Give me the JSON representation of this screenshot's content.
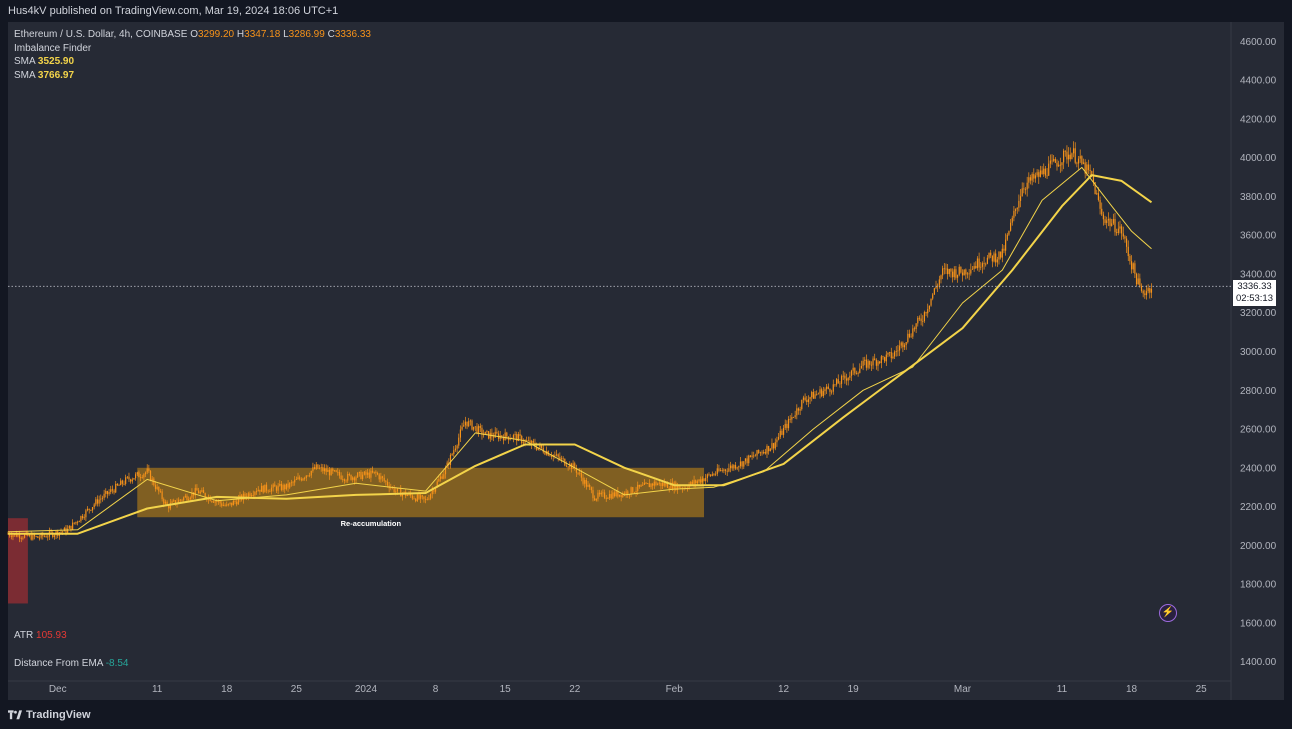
{
  "header": {
    "published_text": "Hus4kV published on TradingView.com, Mar 19, 2024 18:06 UTC+1"
  },
  "legend": {
    "symbol": "Ethereum / U.S. Dollar, 4h, COINBASE",
    "open_label": "O",
    "open": "3299.20",
    "high_label": "H",
    "high": "3347.18",
    "low_label": "L",
    "low": "3286.99",
    "close_label": "C",
    "close": "3336.33",
    "indicator_name": "Imbalance Finder",
    "sma1_label": "SMA",
    "sma1_value": "3525.90",
    "sma2_label": "SMA",
    "sma2_value": "3766.97"
  },
  "indicators": {
    "atr_label": "ATR",
    "atr_value": "105.93",
    "dist_label": "Distance From EMA",
    "dist_value": "-8.54"
  },
  "price_tag": {
    "price": "3336.33",
    "countdown": "02:53:13"
  },
  "annotation": {
    "text": "Re-accumulation"
  },
  "footer": {
    "brand": "TradingView"
  },
  "colors": {
    "candle": "#f7931a",
    "sma": "#f3d44a",
    "box": "#a3741c",
    "imbalance": "#8b2d33",
    "bg": "#262a35"
  },
  "chart_data": {
    "type": "line",
    "title": "Ethereum / U.S. Dollar, 4h, COINBASE",
    "y_ticks": [
      1400,
      1600,
      1800,
      2000,
      2200,
      2400,
      2600,
      2800,
      3000,
      3200,
      3400,
      3600,
      3800,
      4000,
      4200,
      4400,
      4600
    ],
    "y_tick_labels": [
      "1400.00",
      "1600.00",
      "1800.00",
      "2000.00",
      "2200.00",
      "2400.00",
      "2600.00",
      "2800.00",
      "3000.00",
      "3200.00",
      "3400.00",
      "3600.00",
      "3800.00",
      "4000.00",
      "4200.00",
      "4400.00",
      "4600.00"
    ],
    "ylim": [
      1300,
      4700
    ],
    "x_tick_labels": [
      {
        "label": "Dec",
        "date": "2023-12-01"
      },
      {
        "label": "11",
        "date": "2023-12-11"
      },
      {
        "label": "18",
        "date": "2023-12-18"
      },
      {
        "label": "25",
        "date": "2023-12-25"
      },
      {
        "label": "2024",
        "date": "2024-01-01"
      },
      {
        "label": "8",
        "date": "2024-01-08"
      },
      {
        "label": "15",
        "date": "2024-01-15"
      },
      {
        "label": "22",
        "date": "2024-01-22"
      },
      {
        "label": "Feb",
        "date": "2024-02-01"
      },
      {
        "label": "12",
        "date": "2024-02-12"
      },
      {
        "label": "19",
        "date": "2024-02-19"
      },
      {
        "label": "Mar",
        "date": "2024-03-01"
      },
      {
        "label": "11",
        "date": "2024-03-11"
      },
      {
        "label": "18",
        "date": "2024-03-18"
      },
      {
        "label": "25",
        "date": "2024-03-25"
      }
    ],
    "xlim": [
      "2023-11-26",
      "2024-03-28"
    ],
    "price_series": {
      "x": [
        "2023-11-26",
        "2023-11-29",
        "2023-12-02",
        "2023-12-05",
        "2023-12-08",
        "2023-12-10",
        "2023-12-12",
        "2023-12-15",
        "2023-12-18",
        "2023-12-21",
        "2023-12-24",
        "2023-12-27",
        "2023-12-30",
        "2024-01-02",
        "2024-01-04",
        "2024-01-07",
        "2024-01-09",
        "2024-01-11",
        "2024-01-13",
        "2024-01-16",
        "2024-01-19",
        "2024-01-22",
        "2024-01-24",
        "2024-01-27",
        "2024-01-30",
        "2024-02-02",
        "2024-02-05",
        "2024-02-08",
        "2024-02-11",
        "2024-02-14",
        "2024-02-17",
        "2024-02-20",
        "2024-02-23",
        "2024-02-26",
        "2024-02-28",
        "2024-03-01",
        "2024-03-03",
        "2024-03-05",
        "2024-03-07",
        "2024-03-09",
        "2024-03-11",
        "2024-03-12",
        "2024-03-14",
        "2024-03-15",
        "2024-03-17",
        "2024-03-18",
        "2024-03-19",
        "2024-03-20"
      ],
      "values": [
        2060,
        2040,
        2080,
        2230,
        2340,
        2380,
        2200,
        2280,
        2200,
        2290,
        2300,
        2400,
        2350,
        2370,
        2280,
        2230,
        2390,
        2640,
        2570,
        2560,
        2490,
        2400,
        2250,
        2270,
        2320,
        2300,
        2370,
        2430,
        2520,
        2750,
        2820,
        2930,
        2980,
        3180,
        3410,
        3410,
        3470,
        3500,
        3850,
        3920,
        4000,
        4030,
        3900,
        3700,
        3620,
        3450,
        3300,
        3336
      ]
    },
    "sma_fast": {
      "x": [
        "2023-11-26",
        "2023-12-03",
        "2023-12-10",
        "2023-12-17",
        "2023-12-24",
        "2023-12-31",
        "2024-01-07",
        "2024-01-12",
        "2024-01-17",
        "2024-01-22",
        "2024-01-27",
        "2024-02-01",
        "2024-02-05",
        "2024-02-10",
        "2024-02-15",
        "2024-02-20",
        "2024-02-25",
        "2024-03-01",
        "2024-03-05",
        "2024-03-09",
        "2024-03-13",
        "2024-03-16",
        "2024-03-18",
        "2024-03-20"
      ],
      "values": [
        2070,
        2080,
        2340,
        2230,
        2260,
        2320,
        2280,
        2580,
        2540,
        2400,
        2260,
        2290,
        2300,
        2380,
        2600,
        2800,
        2920,
        3250,
        3420,
        3780,
        3950,
        3750,
        3620,
        3530
      ]
    },
    "sma_slow": {
      "x": [
        "2023-11-26",
        "2023-12-03",
        "2023-12-10",
        "2023-12-17",
        "2023-12-24",
        "2023-12-31",
        "2024-01-07",
        "2024-01-12",
        "2024-01-17",
        "2024-01-22",
        "2024-01-27",
        "2024-02-01",
        "2024-02-06",
        "2024-02-12",
        "2024-02-18",
        "2024-02-24",
        "2024-03-01",
        "2024-03-06",
        "2024-03-11",
        "2024-03-14",
        "2024-03-17",
        "2024-03-20"
      ],
      "values": [
        2060,
        2060,
        2190,
        2250,
        2240,
        2260,
        2270,
        2410,
        2520,
        2520,
        2400,
        2310,
        2310,
        2420,
        2660,
        2890,
        3120,
        3420,
        3750,
        3910,
        3880,
        3770
      ]
    },
    "current_price": 3336.33,
    "box": {
      "label": "Re-accumulation",
      "x0": "2023-12-09",
      "x1": "2024-02-04",
      "y0": 2145,
      "y1": 2400
    },
    "imbalance_zone": {
      "x0": "2023-11-26",
      "x1": "2023-11-28",
      "y0": 1700,
      "y1": 2140
    }
  }
}
